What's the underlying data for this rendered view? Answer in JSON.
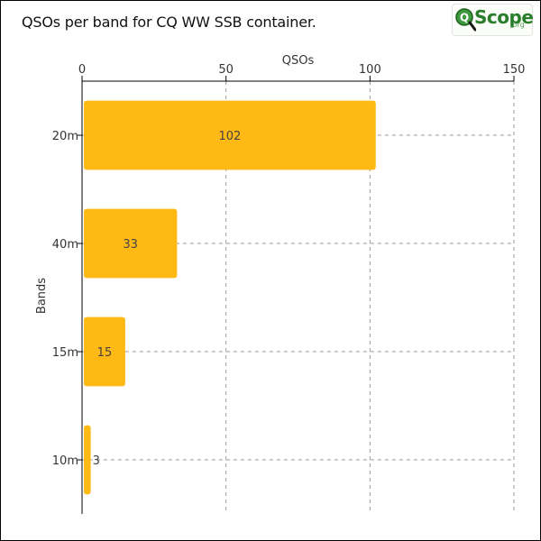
{
  "chart_data": {
    "type": "bar",
    "orientation": "horizontal",
    "title": "QSOs per band for CQ WW SSB container.",
    "xlabel": "QSOs",
    "ylabel": "Bands",
    "categories": [
      "20m",
      "40m",
      "15m",
      "10m"
    ],
    "values": [
      102,
      33,
      15,
      3
    ],
    "xlim": [
      0,
      150
    ],
    "xticks": [
      0,
      50,
      100,
      150
    ],
    "x_axis_position": "top",
    "grid": true,
    "bar_color": "#ffb914",
    "grid_color": "#999999"
  },
  "logo": {
    "word": "Scope",
    "suffix": ".org",
    "letter": "Q",
    "color": "#2a7d2a"
  }
}
